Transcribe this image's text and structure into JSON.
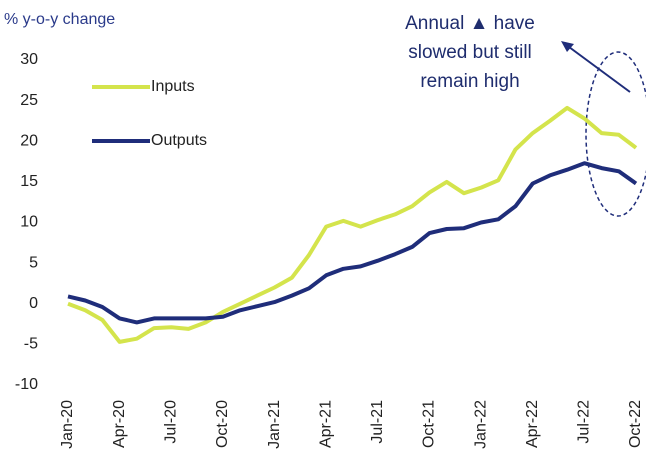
{
  "chart_data": {
    "type": "line",
    "y_axis_label": "% y-o-y change",
    "annotation": [
      "Annual ▲ have",
      "slowed but still",
      "remain high"
    ],
    "categories": [
      "Jan-20",
      null,
      null,
      "Apr-20",
      null,
      null,
      "Jul-20",
      null,
      null,
      "Oct-20",
      null,
      null,
      "Jan-21",
      null,
      null,
      "Apr-21",
      null,
      null,
      "Jul-21",
      null,
      null,
      "Oct-21",
      null,
      null,
      "Jan-22",
      null,
      null,
      "Apr-22",
      null,
      null,
      "Jul-22",
      null,
      null,
      "Oct-22"
    ],
    "series": [
      {
        "name": "Inputs",
        "color": "#d4e44c",
        "values": [
          0,
          -0.8,
          -2,
          -4.7,
          -4.3,
          -3,
          -2.9,
          -3.1,
          -2.3,
          -1,
          0,
          1,
          2,
          3.2,
          6,
          9.5,
          10.2,
          9.5,
          10.3,
          11,
          12,
          13.7,
          15,
          13.6,
          14.3,
          15.2,
          19,
          21,
          22.5,
          24.1,
          22.8,
          21,
          20.8,
          19.2
        ]
      },
      {
        "name": "Outputs",
        "color": "#1f2d7a",
        "values": [
          0.9,
          0.4,
          -0.4,
          -1.8,
          -2.3,
          -1.8,
          -1.8,
          -1.8,
          -1.8,
          -1.6,
          -0.8,
          -0.3,
          0.2,
          1,
          1.9,
          3.5,
          4.3,
          4.6,
          5.3,
          6.1,
          7,
          8.7,
          9.2,
          9.3,
          10,
          10.4,
          12,
          14.8,
          15.8,
          16.5,
          17.3,
          16.7,
          16.3,
          14.8
        ]
      }
    ],
    "ylim": [
      -10,
      30
    ],
    "yticks": [
      -10,
      -5,
      0,
      5,
      10,
      15,
      20,
      25,
      30
    ],
    "grid": false
  }
}
